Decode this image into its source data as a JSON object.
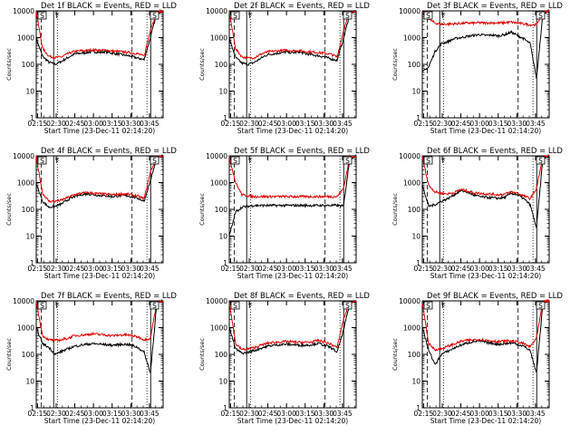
{
  "chart_data": [
    {
      "type": "line",
      "title": "Det 1f BLACK = Events, RED = LLD",
      "xlabel": "Start Time (23-Dec-11 02:14:20)",
      "ylabel": "Counts/sec",
      "xticks": [
        "02:15",
        "02:30",
        "02:45",
        "03:00",
        "03:15",
        "03:30",
        "03:45"
      ],
      "xlim_min": [
        0,
        102
      ],
      "yscale": "log",
      "ylim": [
        1,
        10000
      ],
      "yticks": [
        "1",
        "10",
        "100",
        "1000",
        "10000"
      ],
      "markers": {
        "dashed": [
          4,
          77
        ],
        "dotted": [
          17,
          89
        ],
        "solid": [
          14,
          92
        ],
        "boxes": [
          "S",
          "S"
        ],
        "flags": [
          "F"
        ]
      },
      "series": [
        {
          "name": "Events",
          "color": "#000000",
          "values": [
            900,
            200,
            120,
            100,
            130,
            180,
            240,
            260,
            280,
            300,
            280,
            300,
            260,
            240,
            220,
            200,
            170,
            150,
            1000,
            8000,
            10000
          ]
        },
        {
          "name": "LLD",
          "color": "#e00000",
          "values": [
            9000,
            400,
            200,
            180,
            190,
            250,
            300,
            320,
            330,
            350,
            330,
            340,
            310,
            300,
            290,
            270,
            250,
            200,
            2000,
            9000,
            10000
          ]
        }
      ]
    },
    {
      "type": "line",
      "title": "Det 2f BLACK = Events, RED = LLD",
      "xlabel": "Start Time (23-Dec-11 02:14:20)",
      "ylabel": "Counts/sec",
      "xticks": [
        "02:15",
        "02:30",
        "02:45",
        "03:00",
        "03:15",
        "03:30",
        "03:45"
      ],
      "xlim_min": [
        0,
        102
      ],
      "yscale": "log",
      "ylim": [
        1,
        10000
      ],
      "yticks": [
        "1",
        "10",
        "100",
        "1000",
        "10000"
      ],
      "markers": {
        "dashed": [
          4,
          77
        ],
        "dotted": [
          17,
          89
        ],
        "solid": [
          14,
          92
        ],
        "boxes": [
          "S",
          "S"
        ],
        "flags": [
          "F"
        ]
      },
      "series": [
        {
          "name": "Events",
          "color": "#000000",
          "values": [
            900,
            180,
            110,
            100,
            120,
            170,
            230,
            250,
            270,
            290,
            270,
            290,
            250,
            230,
            210,
            190,
            160,
            140,
            900,
            8000,
            10000
          ]
        },
        {
          "name": "LLD",
          "color": "#e00000",
          "values": [
            9000,
            380,
            190,
            170,
            180,
            240,
            290,
            310,
            320,
            340,
            320,
            330,
            300,
            290,
            280,
            260,
            240,
            190,
            1800,
            9000,
            10000
          ]
        }
      ]
    },
    {
      "type": "line",
      "title": "Det 3f BLACK = Events, RED = LLD",
      "xlabel": "Start Time (23-Dec-11 02:14:20)",
      "ylabel": "Counts/sec",
      "xticks": [
        "02:15",
        "02:30",
        "02:45",
        "03:00",
        "03:15",
        "03:30",
        "03:45"
      ],
      "xlim_min": [
        0,
        102
      ],
      "yscale": "log",
      "ylim": [
        1,
        10000
      ],
      "yticks": [
        "1",
        "10",
        "100",
        "1000",
        "10000"
      ],
      "markers": {
        "dashed": [
          4,
          77
        ],
        "dotted": [
          17,
          89
        ],
        "solid": [
          14,
          92
        ],
        "boxes": [
          "S",
          "S"
        ],
        "flags": [
          "F"
        ]
      },
      "series": [
        {
          "name": "Events",
          "color": "#000000",
          "values": [
            50,
            80,
            300,
            600,
            700,
            900,
            1000,
            1100,
            1200,
            1300,
            1200,
            1250,
            1150,
            1300,
            1600,
            1200,
            900,
            600,
            30,
            8000,
            10000
          ]
        },
        {
          "name": "LLD",
          "color": "#e00000",
          "values": [
            9000,
            5000,
            3500,
            3200,
            3200,
            3300,
            3400,
            3500,
            3500,
            3600,
            3500,
            3600,
            3500,
            3600,
            3800,
            3500,
            3300,
            3000,
            3000,
            9000,
            10000
          ]
        }
      ]
    },
    {
      "type": "line",
      "title": "Det 4f BLACK = Events, RED = LLD",
      "xlabel": "Start Time (23-Dec-11 02:14:20)",
      "ylabel": "Counts/sec",
      "xticks": [
        "02:15",
        "02:30",
        "02:45",
        "03:00",
        "03:15",
        "03:30",
        "03:45"
      ],
      "xlim_min": [
        0,
        102
      ],
      "yscale": "log",
      "ylim": [
        1,
        10000
      ],
      "yticks": [
        "1",
        "10",
        "100",
        "1000",
        "10000"
      ],
      "markers": {
        "dashed": [
          4,
          77
        ],
        "dotted": [
          17,
          89
        ],
        "solid": [
          14,
          92
        ],
        "boxes": [
          "S",
          "S"
        ],
        "flags": [
          "F"
        ]
      },
      "series": [
        {
          "name": "Events",
          "color": "#000000",
          "values": [
            900,
            200,
            120,
            130,
            160,
            230,
            300,
            350,
            380,
            360,
            330,
            320,
            300,
            320,
            330,
            300,
            260,
            200,
            1200,
            8000,
            10000
          ]
        },
        {
          "name": "LLD",
          "color": "#e00000",
          "values": [
            9000,
            400,
            200,
            200,
            220,
            280,
            350,
            400,
            420,
            400,
            380,
            370,
            350,
            370,
            380,
            350,
            310,
            250,
            2500,
            9000,
            10000
          ]
        }
      ]
    },
    {
      "type": "line",
      "title": "Det 5f BLACK = Events, RED = LLD",
      "xlabel": "Start Time (23-Dec-11 02:14:20)",
      "ylabel": "Counts/sec",
      "xticks": [
        "02:15",
        "02:30",
        "02:45",
        "03:00",
        "03:15",
        "03:30",
        "03:45"
      ],
      "xlim_min": [
        0,
        102
      ],
      "yscale": "log",
      "ylim": [
        1,
        10000
      ],
      "yticks": [
        "1",
        "10",
        "100",
        "1000",
        "10000"
      ],
      "markers": {
        "dashed": [
          4,
          77
        ],
        "dotted": [
          17,
          89
        ],
        "solid": [
          14,
          92
        ],
        "boxes": [
          "S",
          "S"
        ],
        "flags": [
          "F"
        ]
      },
      "series": [
        {
          "name": "Events",
          "color": "#000000",
          "values": [
            10,
            80,
            120,
            130,
            140,
            140,
            140,
            140,
            140,
            140,
            140,
            140,
            140,
            140,
            140,
            140,
            140,
            140,
            130,
            8000,
            10000
          ]
        },
        {
          "name": "LLD",
          "color": "#e00000",
          "values": [
            9000,
            1000,
            350,
            320,
            300,
            300,
            300,
            300,
            300,
            300,
            300,
            300,
            300,
            300,
            300,
            300,
            300,
            300,
            600,
            9000,
            10000
          ]
        }
      ]
    },
    {
      "type": "line",
      "title": "Det 6f BLACK = Events, RED = LLD",
      "xlabel": "Start Time (23-Dec-11 02:14:20)",
      "ylabel": "Counts/sec",
      "xticks": [
        "02:15",
        "02:30",
        "02:45",
        "03:00",
        "03:15",
        "03:30",
        "03:45"
      ],
      "xlim_min": [
        0,
        102
      ],
      "yscale": "log",
      "ylim": [
        1,
        10000
      ],
      "yticks": [
        "1",
        "10",
        "100",
        "1000",
        "10000"
      ],
      "markers": {
        "dashed": [
          4,
          77
        ],
        "dotted": [
          17,
          89
        ],
        "solid": [
          14,
          92
        ],
        "boxes": [
          "S",
          "S"
        ],
        "flags": [
          "F"
        ]
      },
      "series": [
        {
          "name": "Events",
          "color": "#000000",
          "values": [
            800,
            130,
            150,
            200,
            250,
            350,
            500,
            450,
            350,
            300,
            280,
            270,
            260,
            280,
            400,
            350,
            250,
            150,
            20,
            8000,
            10000
          ]
        },
        {
          "name": "LLD",
          "color": "#e00000",
          "values": [
            9000,
            800,
            450,
            400,
            380,
            420,
            550,
            500,
            420,
            400,
            380,
            370,
            350,
            370,
            450,
            400,
            320,
            250,
            600,
            9000,
            10000
          ]
        }
      ]
    },
    {
      "type": "line",
      "title": "Det 7f BLACK = Events, RED = LLD",
      "xlabel": "Start Time (23-Dec-11 02:14:20)",
      "ylabel": "Counts/sec",
      "xticks": [
        "02:15",
        "02:30",
        "02:45",
        "03:00",
        "03:15",
        "03:30",
        "03:45"
      ],
      "xlim_min": [
        0,
        102
      ],
      "yscale": "log",
      "ylim": [
        1,
        10000
      ],
      "yticks": [
        "1",
        "10",
        "100",
        "1000",
        "10000"
      ],
      "markers": {
        "dashed": [
          4,
          77
        ],
        "dotted": [
          17,
          89
        ],
        "solid": [
          14,
          92
        ],
        "boxes": [
          "S",
          "S"
        ],
        "flags": [
          "F"
        ]
      },
      "series": [
        {
          "name": "Events",
          "color": "#000000",
          "values": [
            1000,
            250,
            180,
            100,
            130,
            160,
            200,
            220,
            240,
            250,
            240,
            230,
            220,
            230,
            240,
            220,
            180,
            120,
            20,
            8000,
            10000
          ]
        },
        {
          "name": "LLD",
          "color": "#e00000",
          "values": [
            9000,
            500,
            350,
            330,
            350,
            400,
            500,
            520,
            550,
            580,
            550,
            530,
            500,
            520,
            540,
            500,
            450,
            350,
            400,
            9000,
            10000
          ]
        }
      ]
    },
    {
      "type": "line",
      "title": "Det 8f BLACK = Events, RED = LLD",
      "xlabel": "Start Time (23-Dec-11 02:14:20)",
      "ylabel": "Counts/sec",
      "xticks": [
        "02:15",
        "02:30",
        "02:45",
        "03:00",
        "03:15",
        "03:30",
        "03:45"
      ],
      "xlim_min": [
        0,
        102
      ],
      "yscale": "log",
      "ylim": [
        1,
        10000
      ],
      "yticks": [
        "1",
        "10",
        "100",
        "1000",
        "10000"
      ],
      "markers": {
        "dashed": [
          4,
          77
        ],
        "dotted": [
          17,
          89
        ],
        "solid": [
          14,
          92
        ],
        "boxes": [
          "S",
          "S"
        ],
        "flags": [
          "F"
        ]
      },
      "series": [
        {
          "name": "Events",
          "color": "#000000",
          "values": [
            1000,
            160,
            110,
            120,
            140,
            170,
            200,
            220,
            230,
            240,
            230,
            220,
            220,
            230,
            260,
            220,
            180,
            120,
            800,
            8000,
            10000
          ]
        },
        {
          "name": "LLD",
          "color": "#e00000",
          "values": [
            9000,
            250,
            150,
            160,
            180,
            220,
            260,
            280,
            290,
            300,
            290,
            280,
            280,
            290,
            330,
            290,
            240,
            180,
            2000,
            9000,
            10000
          ]
        }
      ]
    },
    {
      "type": "line",
      "title": "Det 9f BLACK = Events, RED = LLD",
      "xlabel": "Start Time (23-Dec-11 02:14:20)",
      "ylabel": "Counts/sec",
      "xticks": [
        "02:15",
        "02:30",
        "02:45",
        "03:00",
        "03:15",
        "03:30",
        "03:45"
      ],
      "xlim_min": [
        0,
        102
      ],
      "yscale": "log",
      "ylim": [
        1,
        10000
      ],
      "yticks": [
        "1",
        "10",
        "100",
        "1000",
        "10000"
      ],
      "markers": {
        "dashed": [
          4,
          77
        ],
        "dotted": [
          17,
          89
        ],
        "solid": [
          14,
          92
        ],
        "boxes": [
          "S",
          "S"
        ],
        "flags": [
          "F"
        ]
      },
      "series": [
        {
          "name": "Events",
          "color": "#000000",
          "values": [
            1000,
            150,
            40,
            100,
            130,
            170,
            220,
            260,
            300,
            320,
            280,
            260,
            240,
            250,
            270,
            240,
            200,
            140,
            20,
            8000,
            10000
          ]
        },
        {
          "name": "LLD",
          "color": "#e00000",
          "values": [
            9000,
            250,
            150,
            160,
            200,
            240,
            300,
            330,
            350,
            360,
            340,
            320,
            300,
            310,
            320,
            290,
            250,
            190,
            400,
            9000,
            10000
          ]
        }
      ]
    }
  ]
}
